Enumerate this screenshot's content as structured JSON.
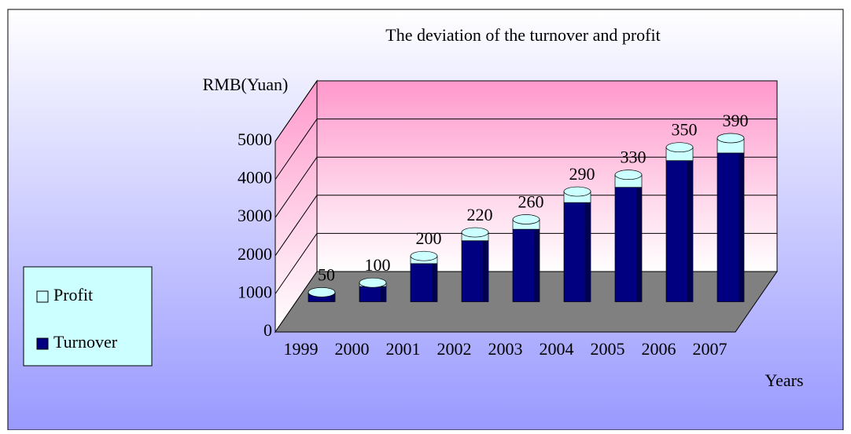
{
  "chart_data": {
    "type": "bar",
    "stacked": true,
    "title": "The deviation of the turnover and profit",
    "y_label": "RMB(Yuan)",
    "x_label": "Years",
    "categories": [
      "1999",
      "2000",
      "2001",
      "2002",
      "2003",
      "2004",
      "2005",
      "2006",
      "2007"
    ],
    "series": [
      {
        "name": "Profit",
        "color": "#ccffff",
        "values": [
          50,
          100,
          200,
          220,
          260,
          290,
          330,
          350,
          390
        ]
      },
      {
        "name": "Turnover",
        "color": "#000080",
        "values": [
          200,
          400,
          1000,
          1600,
          1900,
          2600,
          3000,
          3700,
          3900
        ]
      }
    ],
    "ylim": [
      0,
      5000
    ],
    "yticks": [
      0,
      1000,
      2000,
      3000,
      4000,
      5000
    ],
    "grid": true,
    "legend": "left"
  }
}
